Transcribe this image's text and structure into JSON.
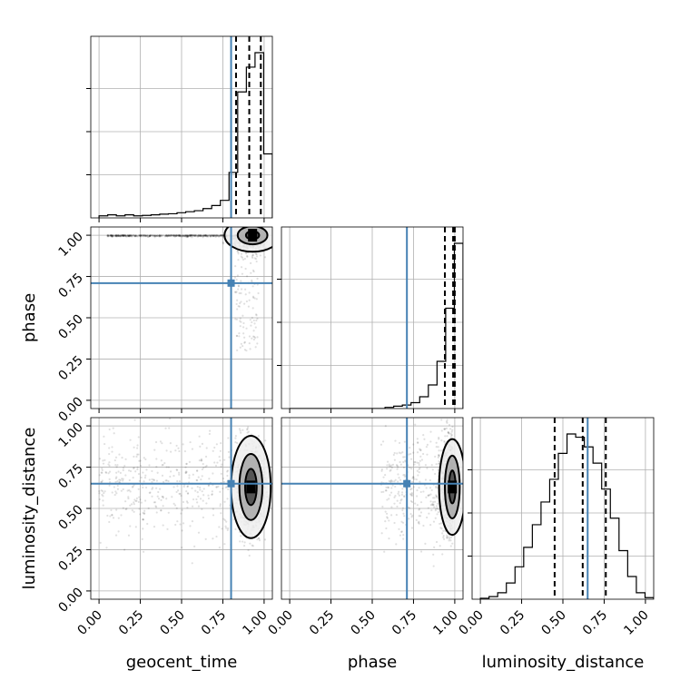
{
  "chart_data": {
    "type": "corner",
    "parameters": [
      "geocent_time",
      "phase",
      "luminosity_distance"
    ],
    "axis_labels": {
      "x": [
        "geocent_time",
        "phase",
        "luminosity_distance"
      ],
      "y": [
        "",
        "phase",
        "luminosity_distance"
      ]
    },
    "ticks": [
      0.0,
      0.25,
      0.5,
      0.75,
      1.0
    ],
    "tick_labels": [
      "0.00",
      "0.25",
      "0.50",
      "0.75",
      "1.00"
    ],
    "range": [
      -0.05,
      1.05
    ],
    "truths": {
      "geocent_time": 0.8,
      "phase": 0.71,
      "luminosity_distance": 0.65
    },
    "quantiles": {
      "geocent_time": [
        0.83,
        0.91,
        0.98
      ],
      "phase": [
        0.94,
        0.99,
        1.0
      ],
      "luminosity_distance": [
        0.45,
        0.62,
        0.76
      ]
    },
    "histograms": {
      "geocent_time": {
        "bin_edges": [
          0.0,
          0.0525,
          0.105,
          0.1575,
          0.21,
          0.2625,
          0.315,
          0.3675,
          0.42,
          0.4725,
          0.525,
          0.5775,
          0.63,
          0.6825,
          0.735,
          0.7875,
          0.84,
          0.8925,
          0.945,
          0.9975,
          1.05
        ],
        "counts": [
          1,
          1.5,
          1,
          1.5,
          1,
          1.2,
          1.5,
          1.8,
          2,
          2.5,
          3,
          3.5,
          4.5,
          6,
          8.5,
          22,
          61,
          73,
          80,
          31
        ]
      },
      "phase": {
        "bin_edges": [
          0.0,
          0.0525,
          0.105,
          0.1575,
          0.21,
          0.2625,
          0.315,
          0.3675,
          0.42,
          0.4725,
          0.525,
          0.5775,
          0.63,
          0.6825,
          0.735,
          0.7875,
          0.84,
          0.8925,
          0.945,
          0.9975,
          1.05
        ],
        "counts": [
          0,
          0,
          0,
          0,
          0,
          0,
          0,
          0,
          0,
          0,
          0,
          0.2,
          0.4,
          0.6,
          1,
          2,
          4,
          8,
          17,
          28
        ]
      },
      "luminosity_distance": {
        "bin_edges": [
          0.0,
          0.0525,
          0.105,
          0.1575,
          0.21,
          0.2625,
          0.315,
          0.3675,
          0.42,
          0.4725,
          0.525,
          0.5775,
          0.63,
          0.6825,
          0.735,
          0.7875,
          0.84,
          0.8925,
          0.945,
          0.9975,
          1.05
        ],
        "counts": [
          0.3,
          0.8,
          2,
          5,
          10,
          16,
          23,
          30,
          37,
          45,
          51,
          50,
          47,
          42,
          34,
          25,
          15,
          7,
          2,
          0.5
        ]
      }
    },
    "grid": true,
    "truth_color": "#4682b4"
  }
}
